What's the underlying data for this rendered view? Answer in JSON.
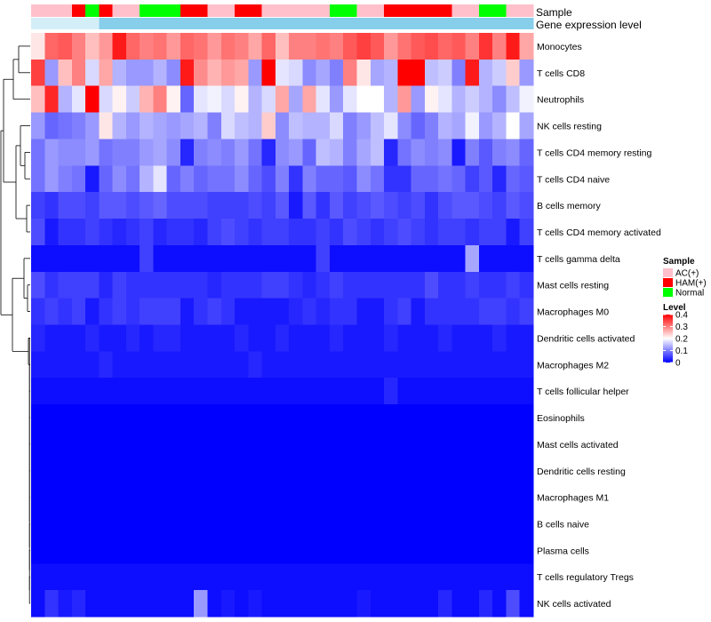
{
  "chart_data": {
    "type": "heatmap",
    "title": "",
    "rows": [
      "Monocytes",
      "T cells CD8",
      "Neutrophils",
      "NK cells resting",
      "T cells CD4 memory resting",
      "T cells CD4 naive",
      "B cells memory",
      "T cells CD4 memory activated",
      "T cells gamma delta",
      "Mast cells resting",
      "Macrophages M0",
      "Dendritic cells activated",
      "Macrophages M2",
      "T cells follicular helper",
      "Eosinophils",
      "Mast cells activated",
      "Dendritic cells resting",
      "Macrophages M1",
      "B cells naive",
      "Plasma cells",
      "T cells regulatory  Tregs",
      "NK cells activated"
    ],
    "annotations": [
      {
        "name": "Sample",
        "values": [
          "AC(+)",
          "AC(+)",
          "AC(+)",
          "HAM(+)",
          "Normal",
          "HAM(+)",
          "AC(+)",
          "AC(+)",
          "Normal",
          "Normal",
          "Normal",
          "HAM(+)",
          "HAM(+)",
          "AC(+)",
          "AC(+)",
          "HAM(+)",
          "HAM(+)",
          "AC(+)",
          "AC(+)",
          "AC(+)",
          "AC(+)",
          "AC(+)",
          "Normal",
          "Normal",
          "AC(+)",
          "AC(+)",
          "HAM(+)",
          "HAM(+)",
          "HAM(+)",
          "HAM(+)",
          "HAM(+)",
          "AC(+)",
          "AC(+)",
          "Normal",
          "Normal",
          "AC(+)",
          "AC(+)"
        ]
      },
      {
        "name": "Gene expression level",
        "values": [
          "low",
          "low",
          "low",
          "low",
          "low",
          "high",
          "high",
          "high",
          "high",
          "high",
          "high",
          "high",
          "high",
          "high",
          "high",
          "high",
          "high",
          "high",
          "high",
          "high",
          "high",
          "high",
          "high",
          "high",
          "high",
          "high",
          "high",
          "high",
          "high",
          "high",
          "high",
          "high",
          "high",
          "high",
          "high",
          "high",
          "high"
        ]
      }
    ],
    "values": [
      [
        0.22,
        0.32,
        0.33,
        0.3,
        0.25,
        0.28,
        0.38,
        0.32,
        0.3,
        0.31,
        0.28,
        0.32,
        0.31,
        0.28,
        0.31,
        0.3,
        0.27,
        0.32,
        0.25,
        0.3,
        0.3,
        0.31,
        0.3,
        0.33,
        0.35,
        0.33,
        0.28,
        0.31,
        0.33,
        0.34,
        0.32,
        0.33,
        0.3,
        0.36,
        0.3,
        0.38,
        0.27
      ],
      [
        0.35,
        0.12,
        0.25,
        0.3,
        0.17,
        0.27,
        0.14,
        0.12,
        0.12,
        0.14,
        0.11,
        0.38,
        0.29,
        0.26,
        0.28,
        0.27,
        0.12,
        0.4,
        0.18,
        0.17,
        0.11,
        0.13,
        0.1,
        0.3,
        0.22,
        0.13,
        0.14,
        0.42,
        0.42,
        0.15,
        0.16,
        0.1,
        0.38,
        0.14,
        0.16,
        0.24,
        0.12
      ],
      [
        0.25,
        0.37,
        0.14,
        0.18,
        0.42,
        0.17,
        0.21,
        0.16,
        0.26,
        0.3,
        0.21,
        0.08,
        0.18,
        0.19,
        0.17,
        0.21,
        0.14,
        0.17,
        0.27,
        0.13,
        0.27,
        0.18,
        0.12,
        0.18,
        0.2,
        0.2,
        0.14,
        0.28,
        0.12,
        0.21,
        0.18,
        0.14,
        0.16,
        0.14,
        0.11,
        0.15,
        0.19
      ],
      [
        0.12,
        0.08,
        0.09,
        0.1,
        0.12,
        0.22,
        0.14,
        0.12,
        0.14,
        0.13,
        0.12,
        0.13,
        0.14,
        0.1,
        0.17,
        0.15,
        0.14,
        0.24,
        0.11,
        0.15,
        0.14,
        0.14,
        0.17,
        0.1,
        0.12,
        0.15,
        0.18,
        0.11,
        0.08,
        0.1,
        0.14,
        0.13,
        0.19,
        0.12,
        0.14,
        0.2,
        0.13
      ],
      [
        0.09,
        0.12,
        0.11,
        0.11,
        0.12,
        0.09,
        0.1,
        0.1,
        0.12,
        0.13,
        0.11,
        0.03,
        0.1,
        0.11,
        0.1,
        0.12,
        0.09,
        0.03,
        0.11,
        0.12,
        0.08,
        0.15,
        0.14,
        0.1,
        0.13,
        0.15,
        0.03,
        0.09,
        0.11,
        0.1,
        0.11,
        0.02,
        0.1,
        0.07,
        0.1,
        0.11,
        0.08
      ],
      [
        0.09,
        0.12,
        0.1,
        0.09,
        0.02,
        0.08,
        0.11,
        0.09,
        0.14,
        0.18,
        0.08,
        0.1,
        0.08,
        0.09,
        0.09,
        0.11,
        0.08,
        0.06,
        0.1,
        0.04,
        0.1,
        0.08,
        0.08,
        0.07,
        0.11,
        0.09,
        0.04,
        0.04,
        0.08,
        0.08,
        0.09,
        0.08,
        0.05,
        0.07,
        0.03,
        0.08,
        0.07
      ],
      [
        0.05,
        0.04,
        0.06,
        0.06,
        0.05,
        0.07,
        0.07,
        0.06,
        0.07,
        0.08,
        0.06,
        0.06,
        0.06,
        0.05,
        0.05,
        0.05,
        0.06,
        0.05,
        0.07,
        0.02,
        0.07,
        0.04,
        0.07,
        0.05,
        0.06,
        0.07,
        0.06,
        0.05,
        0.06,
        0.04,
        0.06,
        0.07,
        0.07,
        0.06,
        0.05,
        0.07,
        0.06
      ],
      [
        0.06,
        0.02,
        0.04,
        0.04,
        0.05,
        0.04,
        0.03,
        0.04,
        0.05,
        0.03,
        0.04,
        0.04,
        0.03,
        0.05,
        0.06,
        0.05,
        0.04,
        0.05,
        0.05,
        0.04,
        0.04,
        0.05,
        0.04,
        0.06,
        0.05,
        0.04,
        0.05,
        0.06,
        0.05,
        0.04,
        0.05,
        0.05,
        0.04,
        0.05,
        0.05,
        0.02,
        0.05
      ],
      [
        0.01,
        0.01,
        0.01,
        0.01,
        0.01,
        0.01,
        0.01,
        0.01,
        0.05,
        0.01,
        0.01,
        0.01,
        0.01,
        0.01,
        0.01,
        0.01,
        0.01,
        0.01,
        0.01,
        0.01,
        0.01,
        0.05,
        0.01,
        0.01,
        0.01,
        0.01,
        0.01,
        0.01,
        0.01,
        0.01,
        0.01,
        0.01,
        0.13,
        0.01,
        0.01,
        0.01,
        0.01
      ],
      [
        0.06,
        0.04,
        0.05,
        0.05,
        0.05,
        0.03,
        0.05,
        0.04,
        0.04,
        0.04,
        0.04,
        0.04,
        0.04,
        0.03,
        0.04,
        0.04,
        0.04,
        0.05,
        0.05,
        0.04,
        0.03,
        0.04,
        0.05,
        0.04,
        0.04,
        0.04,
        0.04,
        0.04,
        0.04,
        0.06,
        0.04,
        0.04,
        0.05,
        0.04,
        0.04,
        0.05,
        0.04
      ],
      [
        0.04,
        0.05,
        0.04,
        0.05,
        0.02,
        0.04,
        0.05,
        0.04,
        0.05,
        0.05,
        0.05,
        0.02,
        0.04,
        0.05,
        0.04,
        0.02,
        0.02,
        0.02,
        0.02,
        0.03,
        0.04,
        0.03,
        0.04,
        0.04,
        0.02,
        0.02,
        0.04,
        0.05,
        0.02,
        0.04,
        0.04,
        0.04,
        0.04,
        0.05,
        0.05,
        0.04,
        0.05
      ],
      [
        0.03,
        0.02,
        0.02,
        0.02,
        0.03,
        0.02,
        0.02,
        0.03,
        0.02,
        0.03,
        0.03,
        0.02,
        0.02,
        0.02,
        0.02,
        0.03,
        0.02,
        0.02,
        0.03,
        0.02,
        0.02,
        0.02,
        0.03,
        0.02,
        0.02,
        0.02,
        0.03,
        0.02,
        0.02,
        0.02,
        0.03,
        0.02,
        0.02,
        0.02,
        0.03,
        0.02,
        0.02
      ],
      [
        0.02,
        0.02,
        0.02,
        0.02,
        0.02,
        0.03,
        0.02,
        0.02,
        0.02,
        0.02,
        0.02,
        0.02,
        0.02,
        0.02,
        0.02,
        0.02,
        0.03,
        0.02,
        0.02,
        0.02,
        0.02,
        0.02,
        0.02,
        0.02,
        0.02,
        0.02,
        0.02,
        0.02,
        0.02,
        0.02,
        0.02,
        0.02,
        0.02,
        0.02,
        0.02,
        0.02,
        0.02
      ],
      [
        0.01,
        0.01,
        0.01,
        0.01,
        0.01,
        0.01,
        0.01,
        0.01,
        0.01,
        0.01,
        0.01,
        0.01,
        0.01,
        0.01,
        0.01,
        0.01,
        0.01,
        0.01,
        0.01,
        0.01,
        0.01,
        0.01,
        0.01,
        0.01,
        0.01,
        0.01,
        0.03,
        0.01,
        0.01,
        0.01,
        0.01,
        0.01,
        0.01,
        0.01,
        0.01,
        0.01,
        0.01
      ],
      [
        0.0,
        0.0,
        0.0,
        0.0,
        0.0,
        0.0,
        0.0,
        0.0,
        0.0,
        0.0,
        0.0,
        0.0,
        0.0,
        0.0,
        0.0,
        0.0,
        0.0,
        0.0,
        0.0,
        0.0,
        0.0,
        0.0,
        0.0,
        0.0,
        0.0,
        0.0,
        0.0,
        0.0,
        0.0,
        0.0,
        0.0,
        0.0,
        0.0,
        0.0,
        0.0,
        0.0,
        0.0
      ],
      [
        0.0,
        0.0,
        0.0,
        0.0,
        0.0,
        0.0,
        0.0,
        0.0,
        0.0,
        0.0,
        0.0,
        0.0,
        0.0,
        0.0,
        0.0,
        0.0,
        0.0,
        0.0,
        0.0,
        0.0,
        0.0,
        0.0,
        0.0,
        0.0,
        0.0,
        0.0,
        0.0,
        0.0,
        0.0,
        0.0,
        0.0,
        0.0,
        0.0,
        0.0,
        0.0,
        0.0,
        0.0
      ],
      [
        0.0,
        0.0,
        0.0,
        0.0,
        0.0,
        0.0,
        0.0,
        0.0,
        0.0,
        0.0,
        0.0,
        0.0,
        0.0,
        0.0,
        0.0,
        0.0,
        0.0,
        0.0,
        0.0,
        0.0,
        0.0,
        0.0,
        0.0,
        0.0,
        0.0,
        0.0,
        0.0,
        0.0,
        0.0,
        0.0,
        0.0,
        0.0,
        0.0,
        0.0,
        0.0,
        0.0,
        0.0
      ],
      [
        0.0,
        0.0,
        0.0,
        0.0,
        0.0,
        0.0,
        0.0,
        0.0,
        0.0,
        0.0,
        0.0,
        0.0,
        0.0,
        0.0,
        0.0,
        0.0,
        0.0,
        0.0,
        0.0,
        0.0,
        0.0,
        0.0,
        0.0,
        0.0,
        0.0,
        0.0,
        0.0,
        0.0,
        0.0,
        0.0,
        0.0,
        0.0,
        0.0,
        0.0,
        0.0,
        0.0,
        0.0
      ],
      [
        0.0,
        0.0,
        0.0,
        0.0,
        0.0,
        0.0,
        0.0,
        0.0,
        0.0,
        0.0,
        0.0,
        0.0,
        0.0,
        0.0,
        0.0,
        0.0,
        0.0,
        0.0,
        0.0,
        0.0,
        0.0,
        0.0,
        0.0,
        0.0,
        0.0,
        0.0,
        0.0,
        0.0,
        0.0,
        0.0,
        0.0,
        0.0,
        0.0,
        0.0,
        0.0,
        0.0,
        0.0
      ],
      [
        0.0,
        0.0,
        0.0,
        0.0,
        0.0,
        0.0,
        0.0,
        0.0,
        0.0,
        0.0,
        0.0,
        0.0,
        0.0,
        0.0,
        0.0,
        0.0,
        0.0,
        0.0,
        0.0,
        0.0,
        0.0,
        0.0,
        0.0,
        0.0,
        0.0,
        0.0,
        0.0,
        0.0,
        0.0,
        0.0,
        0.0,
        0.0,
        0.0,
        0.0,
        0.0,
        0.0,
        0.0
      ],
      [
        0.01,
        0.01,
        0.01,
        0.01,
        0.01,
        0.01,
        0.01,
        0.01,
        0.01,
        0.01,
        0.01,
        0.01,
        0.01,
        0.01,
        0.01,
        0.01,
        0.01,
        0.01,
        0.01,
        0.01,
        0.01,
        0.01,
        0.01,
        0.01,
        0.01,
        0.01,
        0.01,
        0.01,
        0.01,
        0.01,
        0.01,
        0.01,
        0.01,
        0.01,
        0.01,
        0.01,
        0.01
      ],
      [
        0.01,
        0.04,
        0.02,
        0.03,
        0.01,
        0.01,
        0.01,
        0.01,
        0.01,
        0.01,
        0.01,
        0.01,
        0.12,
        0.01,
        0.02,
        0.01,
        0.02,
        0.01,
        0.01,
        0.01,
        0.01,
        0.01,
        0.01,
        0.01,
        0.02,
        0.01,
        0.01,
        0.01,
        0.01,
        0.01,
        0.03,
        0.01,
        0.01,
        0.03,
        0.01,
        0.06,
        0.01
      ]
    ],
    "legend": {
      "sample_title": "Sample",
      "sample_items": [
        {
          "label": "AC(+)",
          "color": "#ffc0cb"
        },
        {
          "label": "HAM(+)",
          "color": "#ff0000"
        },
        {
          "label": "Normal",
          "color": "#00ff00"
        }
      ],
      "level_title": "Level",
      "level_ticks": [
        "0.4",
        "0.3",
        "0.2",
        "0.1",
        "0"
      ],
      "level_range": [
        0,
        0.4
      ],
      "level_colors": [
        "#0000ff",
        "#ffffff",
        "#ff0000"
      ]
    },
    "expression_colors": {
      "low": "#d4eef8",
      "high": "#87ceeb"
    },
    "position": "legend right"
  }
}
